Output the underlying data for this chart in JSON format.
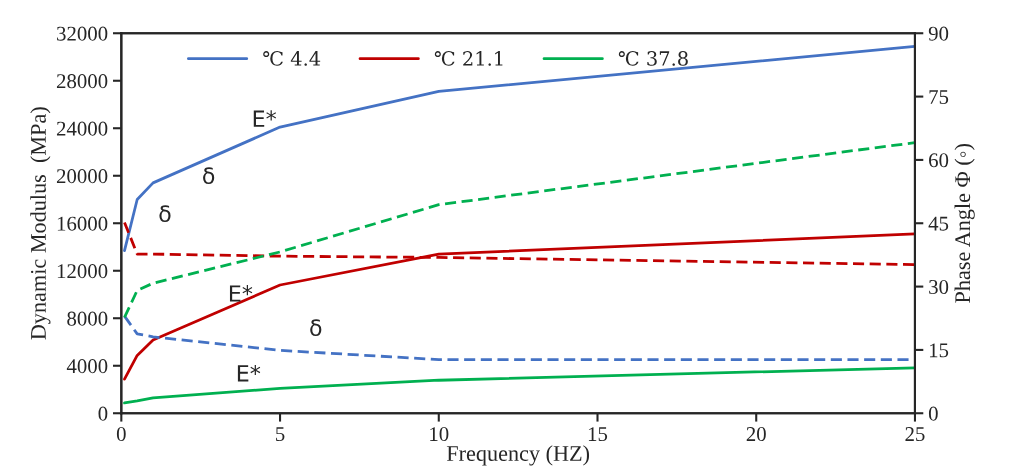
{
  "chart_data": {
    "type": "line",
    "xlabel": "Frequency (HZ)",
    "ylabel": "Dynamic Modulus  (MPa)",
    "y2label": "Phase Angle Φ (◦)",
    "x": [
      0.1,
      0.5,
      1,
      5,
      10,
      25
    ],
    "series": [
      {
        "name": "℃ 4.4",
        "color": "#4472c4",
        "values": [
          13700,
          18000,
          19400,
          24100,
          27100,
          30900
        ],
        "line_style": "solid"
      },
      {
        "name": "℃ 21.1",
        "color": "#c00000",
        "values": [
          2870,
          4870,
          6170,
          10800,
          13400,
          15100
        ],
        "line_style": "solid"
      },
      {
        "name": "℃ 37.8",
        "color": "#00b050",
        "values": [
          870,
          1040,
          1300,
          2090,
          2780,
          3830
        ],
        "line_style": "solid"
      },
      {
        "color": "#4472c4",
        "values": [
          23,
          18.8,
          18.1,
          14.9,
          12.7,
          12.7
        ],
        "axis": "y2",
        "line_style": "dashed"
      },
      {
        "color": "#c00000",
        "values": [
          45.2,
          37.7,
          37.7,
          37.2,
          36.9,
          35.2
        ],
        "axis": "y2",
        "line_style": "dashed"
      },
      {
        "color": "#00b050",
        "values": [
          22.7,
          29.1,
          30.8,
          38.2,
          49.4,
          64.1
        ],
        "axis": "y2",
        "line_style": "dashed"
      }
    ],
    "xlim": [
      0,
      25
    ],
    "xticks": [
      0,
      5,
      10,
      15,
      20,
      25
    ],
    "ylim": [
      0,
      32000
    ],
    "yticks": [
      0,
      4000,
      8000,
      12000,
      16000,
      20000,
      24000,
      28000,
      32000
    ],
    "y2lim": [
      0,
      90
    ],
    "y2ticks": [
      0,
      15,
      30,
      45,
      60,
      75,
      90
    ],
    "annotations": [
      "E*",
      "δ",
      "δ",
      "E*",
      "δ",
      "E*"
    ],
    "legend": "top",
    "grid": false,
    "marker": "none"
  }
}
